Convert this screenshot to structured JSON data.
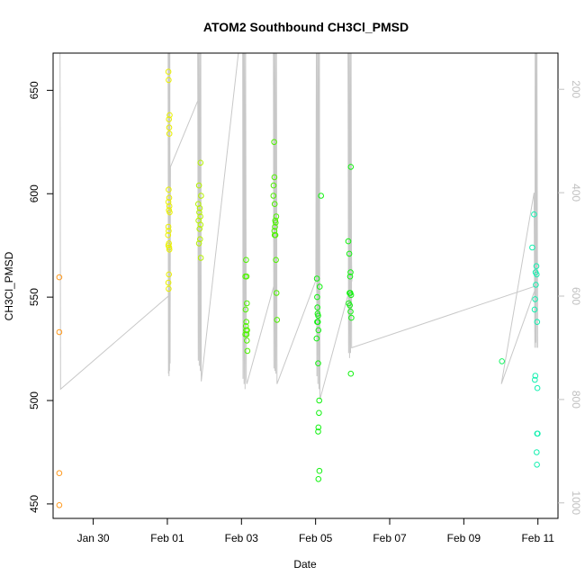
{
  "chart_data": {
    "type": "scatter",
    "title": "ATOM2 Southbound CH3Cl_PMSD",
    "xlabel": "Date",
    "ylabel": "CH3Cl_PMSD",
    "x_ticks": [
      "Jan 30",
      "Feb 01",
      "Feb 03",
      "Feb 05",
      "Feb 07",
      "Feb 09",
      "Feb 11"
    ],
    "y_ticks": [
      450,
      500,
      550,
      600,
      650
    ],
    "y2_ticks": [
      200,
      400,
      600,
      800,
      1000
    ],
    "xlim": [
      "2017-01-28T22:00",
      "2017-02-11T13:00"
    ],
    "ylim": [
      443,
      668
    ],
    "y2lim": [
      1030,
      130
    ],
    "y2_reversed": true,
    "grid": false,
    "colors": {
      "orange": "#ff9a1f",
      "yellow": "#eaf000",
      "yellowgreen": "#b6f200",
      "green": "#4ef200",
      "brightgreen": "#12f210",
      "springgreen": "#14f560",
      "aqua": "#14f0b0",
      "track": "#c8c8c8"
    },
    "series": [
      {
        "color": "orange",
        "points": [
          [
            "2017-01-29T02:00",
            559.6
          ],
          [
            "2017-01-29T02:00",
            533.1
          ],
          [
            "2017-01-29T02:00",
            464.9
          ],
          [
            "2017-01-29T02:00",
            449.4
          ]
        ]
      },
      {
        "color": "yellow",
        "points": [
          [
            "2017-02-01T00:40",
            659
          ],
          [
            "2017-02-01T00:50",
            655
          ],
          [
            "2017-02-01T01:00",
            636
          ],
          [
            "2017-02-01T01:10",
            632
          ],
          [
            "2017-02-01T01:30",
            638
          ],
          [
            "2017-02-01T01:20",
            629
          ],
          [
            "2017-02-01T00:50",
            602
          ],
          [
            "2017-02-01T01:10",
            598
          ],
          [
            "2017-02-01T00:40",
            596
          ],
          [
            "2017-02-01T01:20",
            594
          ],
          [
            "2017-02-01T01:00",
            592
          ],
          [
            "2017-02-01T01:30",
            591
          ],
          [
            "2017-02-01T00:40",
            584
          ],
          [
            "2017-02-01T00:50",
            582
          ],
          [
            "2017-02-01T00:30",
            580
          ],
          [
            "2017-02-01T01:00",
            576
          ],
          [
            "2017-02-01T00:40",
            575
          ],
          [
            "2017-02-01T01:10",
            574
          ],
          [
            "2017-02-01T01:20",
            573
          ],
          [
            "2017-02-01T01:00",
            561
          ],
          [
            "2017-02-01T00:40",
            557
          ],
          [
            "2017-02-01T00:50",
            554
          ]
        ]
      },
      {
        "color": "yellowgreen",
        "points": [
          [
            "2017-02-01T21:30",
            615
          ],
          [
            "2017-02-01T20:30",
            604
          ],
          [
            "2017-02-01T21:50",
            599
          ],
          [
            "2017-02-01T20:00",
            595
          ],
          [
            "2017-02-01T21:00",
            593
          ],
          [
            "2017-02-01T20:40",
            591
          ],
          [
            "2017-02-01T21:20",
            589
          ],
          [
            "2017-02-01T20:10",
            587
          ],
          [
            "2017-02-01T21:30",
            585
          ],
          [
            "2017-02-01T20:50",
            583
          ],
          [
            "2017-02-01T21:10",
            578
          ],
          [
            "2017-02-01T20:30",
            576
          ],
          [
            "2017-02-01T21:40",
            569
          ]
        ]
      },
      {
        "color": "green",
        "points": [
          [
            "2017-02-03T03:00",
            568
          ],
          [
            "2017-02-03T02:30",
            560
          ],
          [
            "2017-02-03T03:20",
            560
          ],
          [
            "2017-02-03T03:30",
            547
          ],
          [
            "2017-02-03T02:40",
            544
          ],
          [
            "2017-02-03T03:10",
            538
          ],
          [
            "2017-02-03T02:50",
            536
          ],
          [
            "2017-02-03T03:00",
            534
          ],
          [
            "2017-02-03T03:40",
            534
          ],
          [
            "2017-02-03T02:30",
            532
          ],
          [
            "2017-02-03T03:20",
            532
          ],
          [
            "2017-02-03T03:30",
            529
          ],
          [
            "2017-02-03T03:50",
            524
          ],
          [
            "2017-02-03T21:10",
            625
          ],
          [
            "2017-02-03T21:20",
            608
          ],
          [
            "2017-02-03T20:50",
            604
          ],
          [
            "2017-02-03T20:40",
            599
          ],
          [
            "2017-02-03T21:30",
            595
          ],
          [
            "2017-02-03T22:30",
            589
          ],
          [
            "2017-02-03T21:50",
            587
          ],
          [
            "2017-02-03T22:10",
            586
          ],
          [
            "2017-02-03T21:40",
            584
          ],
          [
            "2017-02-03T21:20",
            582
          ],
          [
            "2017-02-03T21:30",
            580
          ],
          [
            "2017-02-03T22:00",
            580
          ],
          [
            "2017-02-03T22:20",
            568
          ],
          [
            "2017-02-03T22:40",
            552
          ],
          [
            "2017-02-03T23:00",
            539
          ]
        ]
      },
      {
        "color": "brightgreen",
        "points": [
          [
            "2017-02-05T00:50",
            559
          ],
          [
            "2017-02-05T01:00",
            550
          ],
          [
            "2017-02-05T01:10",
            545
          ],
          [
            "2017-02-05T01:20",
            542
          ],
          [
            "2017-02-05T01:40",
            541
          ],
          [
            "2017-02-05T01:00",
            538
          ],
          [
            "2017-02-05T01:30",
            538
          ],
          [
            "2017-02-05T01:50",
            534
          ],
          [
            "2017-02-05T00:40",
            530
          ],
          [
            "2017-02-05T03:30",
            599
          ],
          [
            "2017-02-05T02:40",
            555
          ],
          [
            "2017-02-05T01:40",
            518
          ],
          [
            "2017-02-05T02:20",
            500
          ],
          [
            "2017-02-05T02:10",
            494
          ],
          [
            "2017-02-05T01:50",
            487
          ],
          [
            "2017-02-05T01:40",
            485
          ],
          [
            "2017-02-05T02:30",
            466
          ],
          [
            "2017-02-05T01:50",
            462
          ],
          [
            "2017-02-05T22:50",
            613
          ],
          [
            "2017-02-05T21:10",
            577
          ],
          [
            "2017-02-05T21:50",
            571
          ],
          [
            "2017-02-05T22:40",
            562
          ],
          [
            "2017-02-05T22:20",
            560
          ],
          [
            "2017-02-05T22:00",
            552
          ],
          [
            "2017-02-05T22:30",
            552
          ],
          [
            "2017-02-05T23:00",
            551
          ],
          [
            "2017-02-05T21:30",
            547
          ],
          [
            "2017-02-05T22:10",
            546
          ],
          [
            "2017-02-05T22:40",
            543
          ],
          [
            "2017-02-05T23:10",
            540
          ],
          [
            "2017-02-05T22:50",
            513
          ]
        ]
      },
      {
        "color": "springgreen",
        "points": [
          [
            "2017-02-10T00:40",
            519
          ]
        ]
      },
      {
        "color": "aqua",
        "points": [
          [
            "2017-02-10T21:30",
            590
          ],
          [
            "2017-02-10T20:20",
            574
          ],
          [
            "2017-02-10T23:00",
            565
          ],
          [
            "2017-02-10T22:30",
            562
          ],
          [
            "2017-02-10T23:10",
            561
          ],
          [
            "2017-02-10T22:40",
            556
          ],
          [
            "2017-02-10T22:10",
            549
          ],
          [
            "2017-02-10T21:50",
            544
          ],
          [
            "2017-02-10T23:30",
            538
          ],
          [
            "2017-02-10T22:20",
            512
          ],
          [
            "2017-02-10T22:00",
            510
          ],
          [
            "2017-02-10T23:40",
            506
          ],
          [
            "2017-02-10T23:30",
            484
          ],
          [
            "2017-02-10T23:50",
            484
          ],
          [
            "2017-02-10T23:10",
            475
          ],
          [
            "2017-02-10T23:20",
            469
          ]
        ]
      }
    ],
    "track": {
      "axis": "y2",
      "color": "track",
      "points": [
        [
          "2017-01-29T00:40",
          130
        ],
        [
          "2017-01-29T01:00",
          130
        ],
        [
          "2017-01-29T02:30",
          130
        ],
        [
          "2017-01-29T02:50",
          780
        ],
        [
          "2017-02-01T00:40",
          600
        ],
        [
          "2017-02-01T00:30",
          130
        ],
        [
          "2017-02-01T00:45",
          750
        ],
        [
          "2017-02-01T00:55",
          130
        ],
        [
          "2017-02-01T01:05",
          755
        ],
        [
          "2017-02-01T01:15",
          130
        ],
        [
          "2017-02-01T01:25",
          745
        ],
        [
          "2017-02-01T01:35",
          130
        ],
        [
          "2017-02-01T01:45",
          730
        ],
        [
          "2017-02-01T02:00",
          350
        ],
        [
          "2017-02-01T20:00",
          220
        ],
        [
          "2017-02-01T19:40",
          130
        ],
        [
          "2017-02-01T20:00",
          725
        ],
        [
          "2017-02-01T20:20",
          130
        ],
        [
          "2017-02-01T20:40",
          735
        ],
        [
          "2017-02-01T21:00",
          130
        ],
        [
          "2017-02-01T21:20",
          745
        ],
        [
          "2017-02-01T21:40",
          130
        ],
        [
          "2017-02-01T21:55",
          765
        ],
        [
          "2017-02-02T22:00",
          130
        ],
        [
          "2017-02-03T00:50",
          130
        ],
        [
          "2017-02-03T01:00",
          760
        ],
        [
          "2017-02-03T01:20",
          130
        ],
        [
          "2017-02-03T01:40",
          770
        ],
        [
          "2017-02-03T02:00",
          130
        ],
        [
          "2017-02-03T02:20",
          780
        ],
        [
          "2017-02-03T02:40",
          130
        ],
        [
          "2017-02-03T03:10",
          760
        ],
        [
          "2017-02-03T03:30",
          770
        ],
        [
          "2017-02-03T21:00",
          580
        ],
        [
          "2017-02-03T20:40",
          130
        ],
        [
          "2017-02-03T21:00",
          740
        ],
        [
          "2017-02-03T21:20",
          130
        ],
        [
          "2017-02-03T21:40",
          745
        ],
        [
          "2017-02-03T22:00",
          130
        ],
        [
          "2017-02-03T22:20",
          750
        ],
        [
          "2017-02-03T22:40",
          130
        ],
        [
          "2017-02-03T23:00",
          770
        ],
        [
          "2017-02-05T00:10",
          570
        ],
        [
          "2017-02-05T00:30",
          130
        ],
        [
          "2017-02-05T00:50",
          755
        ],
        [
          "2017-02-05T01:10",
          130
        ],
        [
          "2017-02-05T01:30",
          770
        ],
        [
          "2017-02-05T01:50",
          130
        ],
        [
          "2017-02-05T02:10",
          780
        ],
        [
          "2017-02-05T02:30",
          130
        ],
        [
          "2017-02-05T02:50",
          800
        ],
        [
          "2017-02-05T23:30",
          570
        ],
        [
          "2017-02-05T21:00",
          130
        ],
        [
          "2017-02-05T21:20",
          710
        ],
        [
          "2017-02-05T21:40",
          130
        ],
        [
          "2017-02-05T22:00",
          720
        ],
        [
          "2017-02-05T22:20",
          130
        ],
        [
          "2017-02-05T22:40",
          710
        ],
        [
          "2017-02-05T23:00",
          130
        ],
        [
          "2017-02-05T23:20",
          700
        ],
        [
          "2017-02-10T23:00",
          580
        ],
        [
          "2017-02-10T00:20",
          770
        ],
        [
          "2017-02-10T21:30",
          400
        ],
        [
          "2017-02-10T22:00",
          700
        ],
        [
          "2017-02-10T22:10",
          130
        ],
        [
          "2017-02-10T22:30",
          690
        ],
        [
          "2017-02-10T22:50",
          130
        ],
        [
          "2017-02-10T23:00",
          700
        ],
        [
          "2017-02-10T23:20",
          130
        ],
        [
          "2017-02-10T23:50",
          700
        ]
      ]
    }
  }
}
